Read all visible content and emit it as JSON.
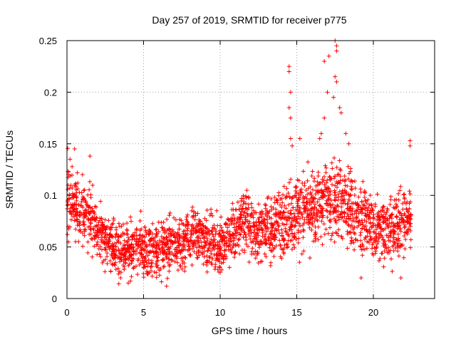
{
  "chart_data": {
    "type": "scatter",
    "title": "Day 257 of 2019, SRMTID for receiver p775",
    "xlabel": "GPS time / hours",
    "ylabel": "SRMTID / TECUs",
    "xlim": [
      0,
      24
    ],
    "ylim": [
      0,
      0.25
    ],
    "xticks": [
      0,
      5,
      10,
      15,
      20
    ],
    "xtick_labels": [
      "0",
      "5",
      "10",
      "15",
      "20"
    ],
    "yticks": [
      0,
      0.05,
      0.1,
      0.15,
      0.2,
      0.25
    ],
    "ytick_labels": [
      "0",
      "0.05",
      "0.1",
      "0.15",
      "0.2",
      "0.25"
    ],
    "grid": true,
    "marker": "+",
    "color": "#ff0000",
    "series": [
      {
        "name": "SRMTID",
        "envelope": {
          "x": [
            0,
            0.5,
            1,
            1.5,
            2,
            2.5,
            3,
            3.5,
            4,
            4.5,
            5,
            5.5,
            6,
            6.5,
            7,
            7.5,
            8,
            8.5,
            9,
            9.5,
            10,
            10.5,
            11,
            11.5,
            12,
            12.5,
            13,
            13.5,
            14,
            14.5,
            15,
            15.5,
            16,
            16.5,
            17,
            17.5,
            18,
            18.5,
            19,
            19.5,
            20,
            20.5,
            21,
            21.5,
            22,
            22.5
          ],
          "y_center": [
            0.1,
            0.095,
            0.085,
            0.08,
            0.07,
            0.055,
            0.05,
            0.048,
            0.045,
            0.05,
            0.05,
            0.048,
            0.047,
            0.05,
            0.052,
            0.055,
            0.06,
            0.06,
            0.058,
            0.055,
            0.05,
            0.055,
            0.07,
            0.075,
            0.07,
            0.065,
            0.065,
            0.07,
            0.075,
            0.08,
            0.085,
            0.085,
            0.085,
            0.09,
            0.095,
            0.1,
            0.095,
            0.085,
            0.08,
            0.075,
            0.07,
            0.07,
            0.065,
            0.07,
            0.075,
            0.08
          ],
          "y_spread": [
            0.025,
            0.025,
            0.022,
            0.022,
            0.02,
            0.018,
            0.018,
            0.017,
            0.017,
            0.018,
            0.018,
            0.018,
            0.018,
            0.018,
            0.018,
            0.018,
            0.018,
            0.018,
            0.018,
            0.018,
            0.018,
            0.018,
            0.02,
            0.02,
            0.02,
            0.02,
            0.02,
            0.02,
            0.022,
            0.025,
            0.025,
            0.025,
            0.025,
            0.025,
            0.028,
            0.03,
            0.03,
            0.028,
            0.025,
            0.025,
            0.022,
            0.022,
            0.022,
            0.022,
            0.022,
            0.022
          ]
        },
        "extremes": [
          {
            "x": 14.5,
            "y": 0.225
          },
          {
            "x": 14.5,
            "y": 0.22
          },
          {
            "x": 14.6,
            "y": 0.2
          },
          {
            "x": 14.5,
            "y": 0.185
          },
          {
            "x": 14.6,
            "y": 0.175
          },
          {
            "x": 14.6,
            "y": 0.155
          },
          {
            "x": 14.7,
            "y": 0.148
          },
          {
            "x": 15.2,
            "y": 0.155
          },
          {
            "x": 16.5,
            "y": 0.155
          },
          {
            "x": 16.6,
            "y": 0.16
          },
          {
            "x": 16.8,
            "y": 0.175
          },
          {
            "x": 16.8,
            "y": 0.23
          },
          {
            "x": 17.0,
            "y": 0.2
          },
          {
            "x": 17.1,
            "y": 0.235
          },
          {
            "x": 17.5,
            "y": 0.25
          },
          {
            "x": 17.6,
            "y": 0.245
          },
          {
            "x": 17.6,
            "y": 0.24
          },
          {
            "x": 17.5,
            "y": 0.215
          },
          {
            "x": 17.6,
            "y": 0.21
          },
          {
            "x": 17.4,
            "y": 0.195
          },
          {
            "x": 17.8,
            "y": 0.185
          },
          {
            "x": 17.9,
            "y": 0.18
          },
          {
            "x": 18.2,
            "y": 0.16
          },
          {
            "x": 18.4,
            "y": 0.15
          },
          {
            "x": 22.4,
            "y": 0.153
          },
          {
            "x": 22.4,
            "y": 0.148
          },
          {
            "x": 0.2,
            "y": 0.135
          },
          {
            "x": 0.5,
            "y": 0.145
          },
          {
            "x": 1.5,
            "y": 0.138
          },
          {
            "x": 4.0,
            "y": 0.015
          },
          {
            "x": 6.5,
            "y": 0.012
          },
          {
            "x": 19.2,
            "y": 0.02
          },
          {
            "x": 21.8,
            "y": 0.02
          },
          {
            "x": 3.5,
            "y": 0.02
          }
        ]
      }
    ]
  }
}
